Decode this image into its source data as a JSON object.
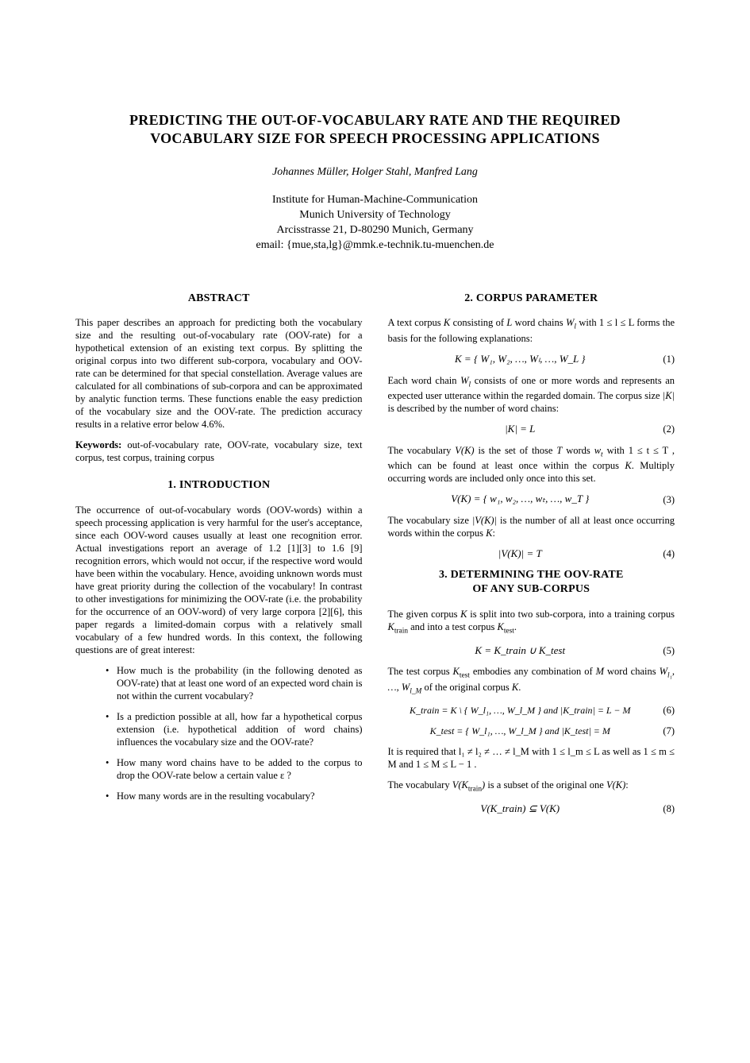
{
  "title_line1": "PREDICTING THE OUT-OF-VOCABULARY RATE AND THE REQUIRED",
  "title_line2": "VOCABULARY SIZE FOR SPEECH PROCESSING APPLICATIONS",
  "authors": "Johannes Müller, Holger Stahl, Manfred Lang",
  "affiliation": {
    "l1": "Institute for Human-Machine-Communication",
    "l2": "Munich University of Technology",
    "l3": "Arcisstrasse 21, D-80290 Munich, Germany",
    "l4": "email: {mue,sta,lg}@mmk.e-technik.tu-muenchen.de"
  },
  "left": {
    "abstract_heading": "ABSTRACT",
    "abstract": "This paper describes an approach for predicting both the vocabulary size and the resulting out-of-vocabulary rate (OOV-rate) for a hypothetical extension of an existing text corpus. By splitting the original corpus into two different sub-corpora, vocabulary and OOV-rate can be determined for that special constellation. Average values are calculated for all combinations of sub-corpora and can be approximated by analytic function terms. These functions enable the easy prediction of the vocabulary size and the OOV-rate. The prediction accuracy results in a relative error below 4.6%.",
    "keywords_label": "Keywords:",
    "keywords_text": " out-of-vocabulary rate, OOV-rate, vocabulary size, text corpus, test corpus, training corpus",
    "intro_heading": "1. INTRODUCTION",
    "intro_para": "The occurrence of out-of-vocabulary words (OOV-words) within a speech processing application is very harmful for the user's acceptance, since each OOV-word causes usually at least one recognition error. Actual investigations report an average of 1.2 [1][3] to 1.6 [9] recognition errors, which would not occur, if the respective word would have been within the vocabulary. Hence, avoiding unknown words must have great priority during the collection of the vocabulary! In contrast to other investigations for minimizing the OOV-rate (i.e. the probability for the occurrence of an OOV-word) of very large corpora [2][6], this paper regards a limited-domain corpus with a relatively small vocabulary of a few hundred words. In this context, the following questions are of great interest:",
    "bullets": [
      "How much is the probability (in the following denoted as OOV-rate) that at least one word of an expected word chain is not within the current vocabulary?",
      "Is a prediction possible at all, how far a hypothetical corpus extension (i.e. hypothetical addition of word chains) influences the vocabulary size and the OOV-rate?",
      "How many word chains have to be added to the corpus to drop the OOV-rate below a certain value ε ?",
      "How many words are in the resulting vocabulary?"
    ]
  },
  "right": {
    "s2_heading": "2. CORPUS PARAMETER",
    "s2_p1a": "A text corpus ",
    "s2_p1b": " consisting of ",
    "s2_p1c": " word chains ",
    "s2_p1d": " with  1 ≤ l ≤ L forms the basis for the following explanations:",
    "eq1": "K  =  { W₁, W₂, …, Wₗ, …, W_L }",
    "eq1n": "(1)",
    "s2_p2a": "Each word chain ",
    "s2_p2b": " consists of one or more words and represents an expected user utterance within the regarded domain. The corpus size ",
    "s2_p2c": " is described by the number of word chains:",
    "eq2": "|K|  =  L",
    "eq2n": "(2)",
    "s2_p3a": "The vocabulary ",
    "s2_p3b": " is the set of those ",
    "s2_p3c": " words ",
    "s2_p3d": " with 1 ≤ t ≤ T , which can be found at least once within the corpus ",
    "s2_p3e": ". Multiply occurring words are included only once into this set.",
    "eq3": "V(K)  =  { w₁, w₂, …, wₜ, …, w_T }",
    "eq3n": "(3)",
    "s2_p4a": "The vocabulary size ",
    "s2_p4b": " is the number of all at least once occurring words within the corpus ",
    "s2_p4c": ":",
    "eq4": "|V(K)|  =  T",
    "eq4n": "(4)",
    "s3_heading_l1": "3. DETERMINING THE OOV-RATE",
    "s3_heading_l2": "OF ANY SUB-CORPUS",
    "s3_p1a": "The given corpus ",
    "s3_p1b": " is split into two sub-corpora, into a training corpus ",
    "s3_p1c": " and into a test corpus ",
    "s3_p1d": ".",
    "eq5": "K  =  K_train ∪ K_test",
    "eq5n": "(5)",
    "s3_p2a": "The test corpus ",
    "s3_p2b": " embodies any combination of ",
    "s3_p2c": " word chains ",
    "s3_p2d": " of the original corpus ",
    "s3_p2e": ".",
    "eq6": "K_train  =  K  \\  { W_l₁, …, W_l_M }     and     |K_train|  =  L − M",
    "eq6n": "(6)",
    "eq7": "K_test  =  { W_l₁, …, W_l_M }     and     |K_test|  =  M",
    "eq7n": "(7)",
    "s3_p3": "It is required that  l₁ ≠ l₂ ≠ … ≠ l_M  with  1 ≤ l_m ≤ L  as well as 1 ≤ m ≤ M  and  1 ≤ M ≤ L − 1 .",
    "s3_p4a": "The vocabulary ",
    "s3_p4b": " is a subset of the original one ",
    "s3_p4c": ":",
    "eq8": "V(K_train) ⊆ V(K)",
    "eq8n": "(8)"
  }
}
